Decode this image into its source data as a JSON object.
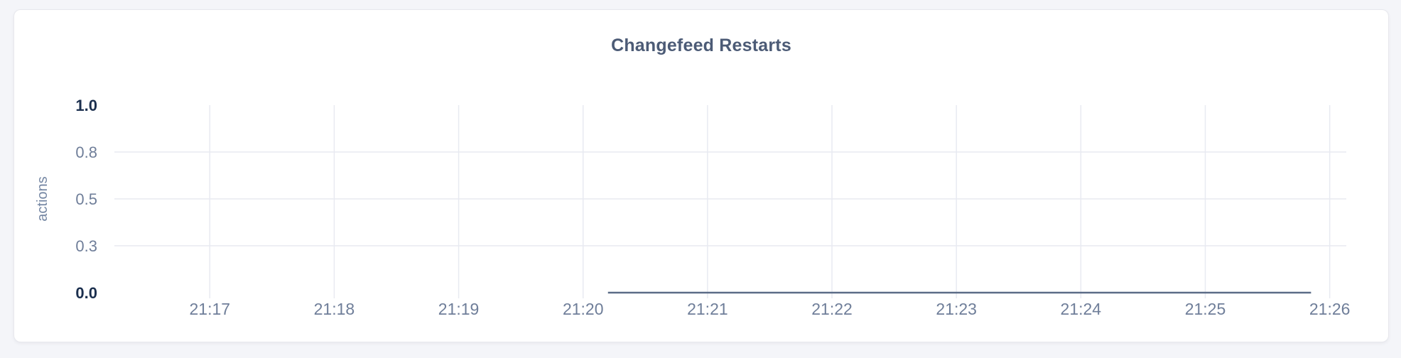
{
  "card": {
    "title": "Changefeed Restarts"
  },
  "colors": {
    "page_background": "#f4f5f9",
    "card_background": "#ffffff",
    "card_border": "#e7e8ed",
    "grid": "#e8eaf1",
    "title": "#4c5b76",
    "tick_label": "#6f7e99",
    "maxmin_label": "#1b2f4e",
    "axis_title": "#7486a3",
    "line": "#5b6c87"
  },
  "chart_data": {
    "type": "line",
    "title": "Changefeed Restarts",
    "xlabel": "",
    "ylabel": "actions",
    "xlim": [
      "21:16:14",
      "21:26:08"
    ],
    "ylim": [
      0,
      1
    ],
    "grid": "on",
    "legend": "none",
    "x_ticks": [
      "21:17",
      "21:18",
      "21:19",
      "21:20",
      "21:21",
      "21:22",
      "21:23",
      "21:24",
      "21:25",
      "21:26"
    ],
    "y_ticks": [
      {
        "value": 0,
        "label": "0.0",
        "emphasis": true
      },
      {
        "value": 0.25,
        "label": "0.3",
        "emphasis": false
      },
      {
        "value": 0.5,
        "label": "0.5",
        "emphasis": false
      },
      {
        "value": 0.75,
        "label": "0.8",
        "emphasis": false
      },
      {
        "value": 1,
        "label": "1.0",
        "emphasis": true
      }
    ],
    "series": [
      {
        "name": "Changefeed Restarts",
        "values_unit": "actions",
        "points": [
          [
            "21:20:12",
            0
          ],
          [
            "21:25:51",
            0
          ]
        ]
      }
    ]
  }
}
